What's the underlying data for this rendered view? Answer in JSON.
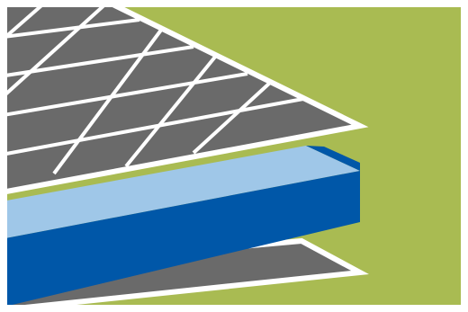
{
  "illustration": {
    "subject": "layered-panel-cross-section",
    "layers": [
      {
        "name": "grid-panel-top",
        "icon": "solar-grid-layer"
      },
      {
        "name": "blue-slab-middle",
        "icon": "blue-slab-layer"
      },
      {
        "name": "grey-panel-bottom",
        "icon": "base-panel-layer"
      }
    ],
    "colors": {
      "background_green": "#a9bb52",
      "panel_grey": "#6a6a6a",
      "grid_lines": "#ffffff",
      "slab_light_blue": "#9fc7e8",
      "slab_dark_blue": "#0057a8",
      "border_white": "#ffffff"
    }
  }
}
